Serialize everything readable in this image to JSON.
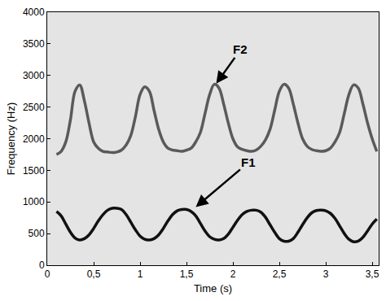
{
  "chart_data": {
    "type": "line",
    "x_label": "Time (s)",
    "y_label": "Frequency (Hz)",
    "xlim": [
      0,
      3.57
    ],
    "xticks": [
      0,
      {
        "value": 0.5,
        "label": "0,5"
      },
      1,
      {
        "value": 1.5,
        "label": "1,5"
      },
      2,
      {
        "value": 2.5,
        "label": "2,5"
      },
      3,
      {
        "value": 3.5,
        "label": "3,5"
      }
    ],
    "ylim": [
      0,
      4000
    ],
    "yticks": [
      0,
      500,
      1000,
      1500,
      2000,
      2500,
      3000,
      3500,
      4000
    ],
    "grid": false,
    "x": [
      0.1,
      0.15,
      0.2,
      0.25,
      0.3,
      0.35,
      0.4,
      0.45,
      0.5,
      0.55,
      0.6,
      0.65,
      0.7,
      0.75,
      0.8,
      0.85,
      0.9,
      0.95,
      1.0,
      1.05,
      1.1,
      1.15,
      1.2,
      1.25,
      1.3,
      1.35,
      1.4,
      1.45,
      1.5,
      1.55,
      1.6,
      1.65,
      1.7,
      1.75,
      1.8,
      1.85,
      1.9,
      1.95,
      2.0,
      2.05,
      2.1,
      2.15,
      2.2,
      2.25,
      2.3,
      2.35,
      2.4,
      2.45,
      2.5,
      2.55,
      2.6,
      2.65,
      2.7,
      2.75,
      2.8,
      2.85,
      2.9,
      2.95,
      3.0,
      3.05,
      3.1,
      3.15,
      3.2,
      3.25,
      3.3,
      3.35,
      3.4,
      3.45,
      3.5,
      3.55
    ],
    "series": [
      {
        "color": "#5a5a5a",
        "line_style": "solid",
        "values": [
          1750,
          1800,
          1950,
          2300,
          2750,
          2850,
          2600,
          2250,
          1950,
          1850,
          1800,
          1790,
          1780,
          1790,
          1820,
          1900,
          2050,
          2350,
          2700,
          2820,
          2750,
          2450,
          2150,
          1950,
          1850,
          1820,
          1810,
          1800,
          1820,
          1850,
          1950,
          2100,
          2400,
          2700,
          2860,
          2800,
          2550,
          2250,
          2000,
          1870,
          1830,
          1810,
          1800,
          1820,
          1880,
          1980,
          2150,
          2450,
          2750,
          2860,
          2800,
          2550,
          2250,
          2000,
          1880,
          1830,
          1810,
          1800,
          1810,
          1850,
          1950,
          2100,
          2400,
          2700,
          2850,
          2800,
          2550,
          2250,
          2000,
          1800
        ]
      },
      {
        "color": "#111111",
        "line_style": "solid",
        "values": [
          850,
          780,
          650,
          520,
          430,
          400,
          420,
          480,
          580,
          700,
          800,
          870,
          900,
          900,
          880,
          800,
          680,
          560,
          460,
          410,
          400,
          420,
          480,
          580,
          700,
          800,
          860,
          880,
          880,
          850,
          780,
          660,
          540,
          450,
          410,
          400,
          420,
          490,
          600,
          710,
          800,
          850,
          870,
          870,
          840,
          760,
          640,
          520,
          420,
          380,
          380,
          420,
          520,
          640,
          750,
          830,
          865,
          870,
          860,
          820,
          740,
          620,
          500,
          410,
          370,
          380,
          440,
          540,
          650,
          730
        ]
      }
    ],
    "annotations": [
      {
        "text": "F2",
        "x": 1.82,
        "y": 2870
      },
      {
        "text": "F1",
        "x": 1.6,
        "y": 920
      }
    ]
  }
}
